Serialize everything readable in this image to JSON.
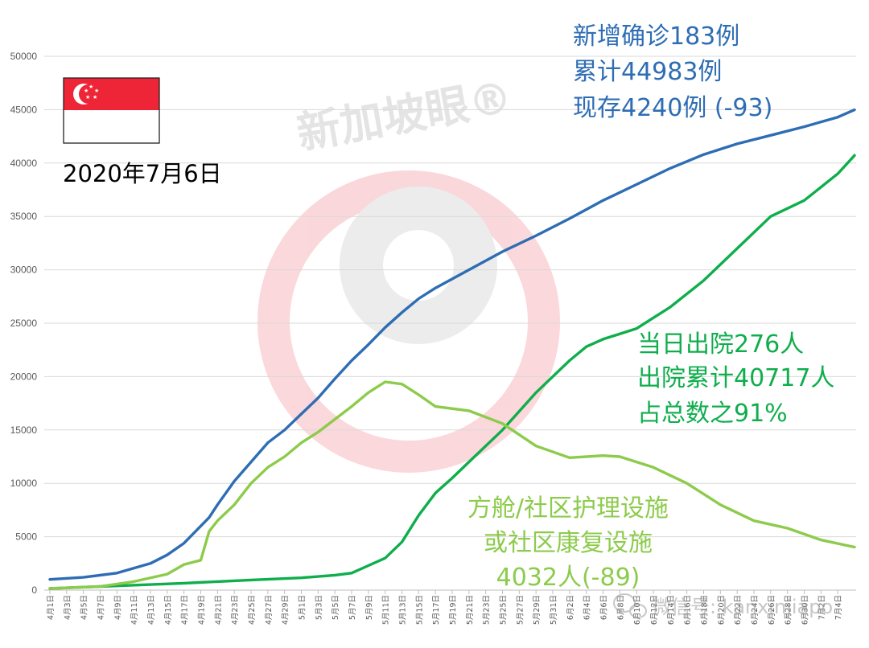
{
  "date_label": "2020年7月6日",
  "flag": {
    "country": "Singapore",
    "red": "#ee2536",
    "white": "#ffffff"
  },
  "watermark": {
    "text": "新加坡眼®",
    "bottom_text": "微信号: kanxinjiapo"
  },
  "annotations": {
    "confirmed": [
      "新增确诊183例",
      "累计44983例",
      "现存4240例 (-93)"
    ],
    "discharged": [
      "当日出院276人",
      "出院累计40717人",
      "占总数之91%"
    ],
    "facility": [
      "方舱/社区护理设施",
      "或社区康复设施",
      "4032人(-89)"
    ]
  },
  "colors": {
    "confirmed": "#2e6db4",
    "discharged": "#0fae4c",
    "facility": "#8ccb4b",
    "grid": "#d9d9d9",
    "tick_text": "#595959"
  },
  "chart_data": {
    "type": "line",
    "title": "",
    "xlabel": "",
    "ylabel": "",
    "ylim": [
      0,
      50000
    ],
    "yticks": [
      0,
      5000,
      10000,
      15000,
      20000,
      25000,
      30000,
      35000,
      40000,
      45000,
      50000
    ],
    "grid": true,
    "legend": "none",
    "x_start": "4月1日",
    "x_end": "7月6日",
    "xtick_labels": [
      "4月1日",
      "4月3日",
      "4月5日",
      "4月7日",
      "4月9日",
      "4月11日",
      "4月13日",
      "4月15日",
      "4月17日",
      "4月19日",
      "4月21日",
      "4月23日",
      "4月25日",
      "4月27日",
      "4月29日",
      "5月1日",
      "5月3日",
      "5月5日",
      "5月7日",
      "5月9日",
      "5月11日",
      "5月13日",
      "5月15日",
      "5月17日",
      "5月19日",
      "5月21日",
      "5月23日",
      "5月25日",
      "5月27日",
      "5月29日",
      "5月31日",
      "6月2日",
      "6月4日",
      "6月6日",
      "6月8日",
      "6月10日",
      "6月12日",
      "6月14日",
      "6月16日",
      "6月18日",
      "6月20日",
      "6月22日",
      "6月24日",
      "6月26日",
      "6月28日",
      "6月30日",
      "7月2日",
      "7月4日"
    ],
    "series": [
      {
        "key": "confirmed",
        "points": [
          [
            "4月1日",
            1000
          ],
          [
            "4月5日",
            1200
          ],
          [
            "4月9日",
            1600
          ],
          [
            "4月13日",
            2500
          ],
          [
            "4月15日",
            3300
          ],
          [
            "4月17日",
            4400
          ],
          [
            "4月19日",
            6000
          ],
          [
            "4月20日",
            6800
          ],
          [
            "4月21日",
            8000
          ],
          [
            "4月23日",
            10200
          ],
          [
            "4月25日",
            12000
          ],
          [
            "4月27日",
            13800
          ],
          [
            "4月29日",
            15000
          ],
          [
            "5月1日",
            16500
          ],
          [
            "5月3日",
            18000
          ],
          [
            "5月5日",
            19800
          ],
          [
            "5月7日",
            21500
          ],
          [
            "5月9日",
            23000
          ],
          [
            "5月11日",
            24600
          ],
          [
            "5月13日",
            26000
          ],
          [
            "5月15日",
            27300
          ],
          [
            "5月17日",
            28300
          ],
          [
            "5月21日",
            30000
          ],
          [
            "5月25日",
            31700
          ],
          [
            "5月29日",
            33200
          ],
          [
            "6月2日",
            34800
          ],
          [
            "6月6日",
            36500
          ],
          [
            "6月10日",
            38000
          ],
          [
            "6月14日",
            39500
          ],
          [
            "6月18日",
            40800
          ],
          [
            "6月22日",
            41800
          ],
          [
            "6月26日",
            42600
          ],
          [
            "6月30日",
            43400
          ],
          [
            "7月4日",
            44300
          ],
          [
            "7月6日",
            44983
          ]
        ]
      },
      {
        "key": "discharged",
        "points": [
          [
            "4月1日",
            150
          ],
          [
            "4月9日",
            400
          ],
          [
            "4月17日",
            650
          ],
          [
            "4月25日",
            950
          ],
          [
            "5月1日",
            1150
          ],
          [
            "5月5日",
            1400
          ],
          [
            "5月7日",
            1600
          ],
          [
            "5月9日",
            2300
          ],
          [
            "5月11日",
            3000
          ],
          [
            "5月13日",
            4500
          ],
          [
            "5月15日",
            7000
          ],
          [
            "5月17日",
            9100
          ],
          [
            "5月19日",
            10500
          ],
          [
            "5月21日",
            12000
          ],
          [
            "5月25日",
            15000
          ],
          [
            "5月29日",
            18500
          ],
          [
            "6月2日",
            21500
          ],
          [
            "6月4日",
            22800
          ],
          [
            "6月6日",
            23500
          ],
          [
            "6月10日",
            24500
          ],
          [
            "6月14日",
            26500
          ],
          [
            "6月18日",
            29000
          ],
          [
            "6月22日",
            32000
          ],
          [
            "6月26日",
            35000
          ],
          [
            "6月30日",
            36500
          ],
          [
            "7月4日",
            39000
          ],
          [
            "7月6日",
            40717
          ]
        ]
      },
      {
        "key": "facility",
        "points": [
          [
            "4月1日",
            150
          ],
          [
            "4月7日",
            350
          ],
          [
            "4月11日",
            800
          ],
          [
            "4月15日",
            1500
          ],
          [
            "4月17日",
            2400
          ],
          [
            "4月19日",
            2800
          ],
          [
            "4月20日",
            5500
          ],
          [
            "4月21日",
            6500
          ],
          [
            "4月23日",
            8000
          ],
          [
            "4月25日",
            10000
          ],
          [
            "4月27日",
            11500
          ],
          [
            "4月29日",
            12500
          ],
          [
            "5月1日",
            13800
          ],
          [
            "5月3日",
            14800
          ],
          [
            "5月5日",
            16000
          ],
          [
            "5月7日",
            17200
          ],
          [
            "5月9日",
            18500
          ],
          [
            "5月11日",
            19500
          ],
          [
            "5月13日",
            19300
          ],
          [
            "5月15日",
            18300
          ],
          [
            "5月17日",
            17200
          ],
          [
            "5月21日",
            16800
          ],
          [
            "5月25日",
            15600
          ],
          [
            "5月29日",
            13500
          ],
          [
            "6月2日",
            12400
          ],
          [
            "6月6日",
            12600
          ],
          [
            "6月8日",
            12500
          ],
          [
            "6月12日",
            11500
          ],
          [
            "6月16日",
            10000
          ],
          [
            "6月20日",
            8000
          ],
          [
            "6月24日",
            6500
          ],
          [
            "6月28日",
            5800
          ],
          [
            "7月2日",
            4700
          ],
          [
            "7月6日",
            4032
          ]
        ]
      }
    ]
  }
}
